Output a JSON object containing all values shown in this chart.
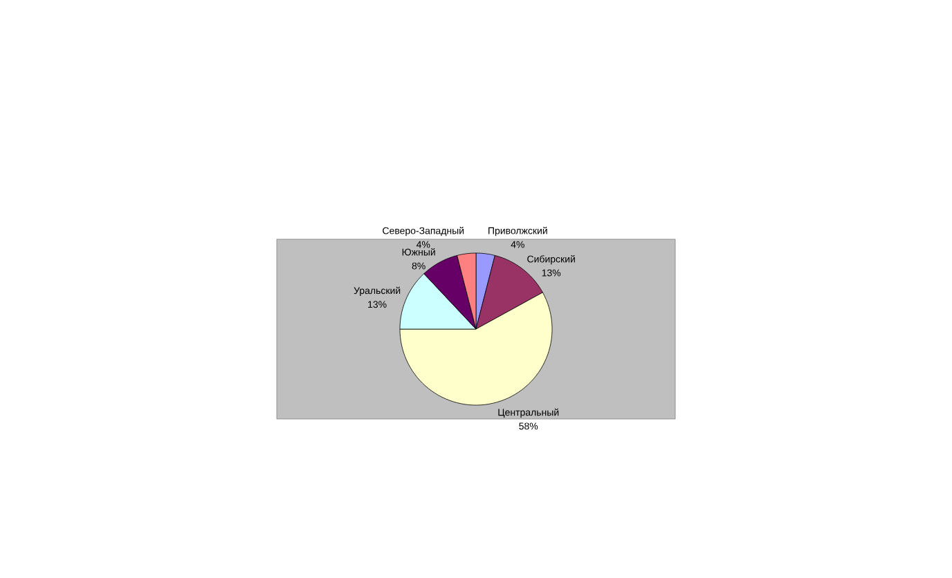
{
  "chart_data": {
    "type": "pie",
    "categories": [
      "Приволжский",
      "Сибирский",
      "Центральный",
      "Уральский",
      "Южный",
      "Северо-Западный"
    ],
    "values": [
      4,
      13,
      58,
      13,
      8,
      4
    ],
    "value_labels": [
      "4%",
      "13%",
      "58%",
      "13%",
      "8%",
      "4%"
    ],
    "colors": [
      "#9999ff",
      "#993366",
      "#ffffcc",
      "#ccffff",
      "#660066",
      "#ff8080"
    ]
  }
}
